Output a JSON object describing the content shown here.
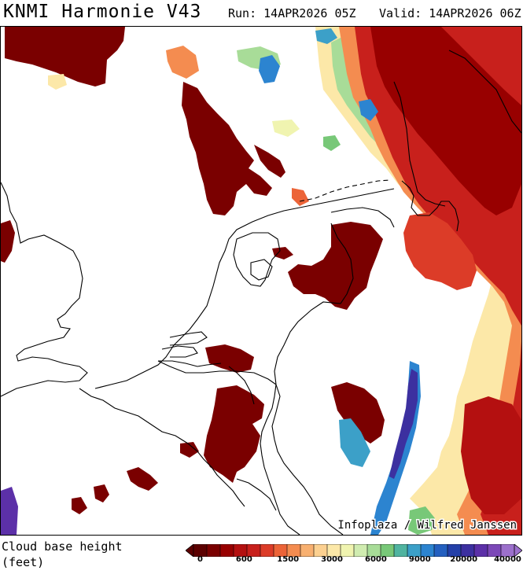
{
  "header": {
    "title": "KNMI Harmonie V43",
    "run": "Run: 14APR2026 05Z",
    "valid": "Valid: 14APR2026 06Z"
  },
  "map": {
    "credit": "Infoplaza / Wilfred Janssen",
    "region": "Netherlands and North Sea",
    "coastline_color": "#000000"
  },
  "legend": {
    "title_line1": "Cloud base height",
    "title_line2": "(feet)",
    "tick_labels": [
      "0",
      "600",
      "1500",
      "3000",
      "6000",
      "9000",
      "20000",
      "40000"
    ],
    "colors": [
      "#5c0000",
      "#7a0000",
      "#980000",
      "#b41010",
      "#c8201c",
      "#dc3c28",
      "#ec6438",
      "#f48c50",
      "#f8b070",
      "#fcd090",
      "#fce8a8",
      "#f0f4b0",
      "#d0ecb0",
      "#a8dc98",
      "#78c878",
      "#50b4a0",
      "#3ca0c8",
      "#2c84d0",
      "#2460c0",
      "#2440a8",
      "#3c30a0",
      "#5c30a8",
      "#7c48b8",
      "#9c70cc"
    ]
  }
}
